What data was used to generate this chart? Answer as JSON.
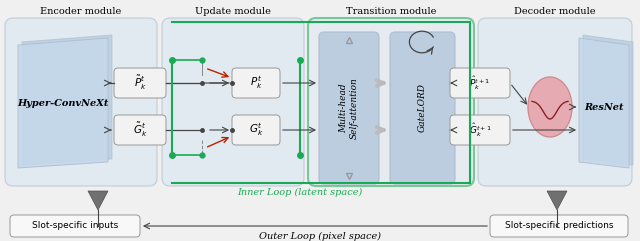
{
  "fig_width": 6.4,
  "fig_height": 2.41,
  "dpi": 100,
  "bg_color": "#f0f0f0",
  "module_bg": "#dce8f0",
  "module_border": "#b0bece",
  "box_bg": "#f2f2f2",
  "box_border": "#999999",
  "green_color": "#1aaa55",
  "arrow_color": "#444444",
  "red_color": "#bb2200",
  "mhsa_bg": "#bccde0",
  "gatelord_bg": "#bccde0",
  "pink_color": "#e8a0a8",
  "pink_border": "#cc8888",
  "hyper_bg": "#c5d8ea",
  "hyper_bg2": "#b0c8de",
  "resnet_bg": "#c5d8ea",
  "resnet_bg2": "#b0c8de",
  "gray_tri": "#707070",
  "module_titles": [
    "Encoder module",
    "Update module",
    "Transition module",
    "Decoder module"
  ],
  "hyper_label": "Hyper-ConvNeXt",
  "resnet_label": "ResNet",
  "mhsa_label": "Multi-head\nSelf-attention",
  "gatelord_label": "GateLORD",
  "inner_loop_label": "Inner Loop (latent space)",
  "outer_loop_label": "Outer Loop (pixel space)",
  "slot_inputs_label": "Slot-specific inputs",
  "slot_predictions_label": "Slot-specific predictions"
}
